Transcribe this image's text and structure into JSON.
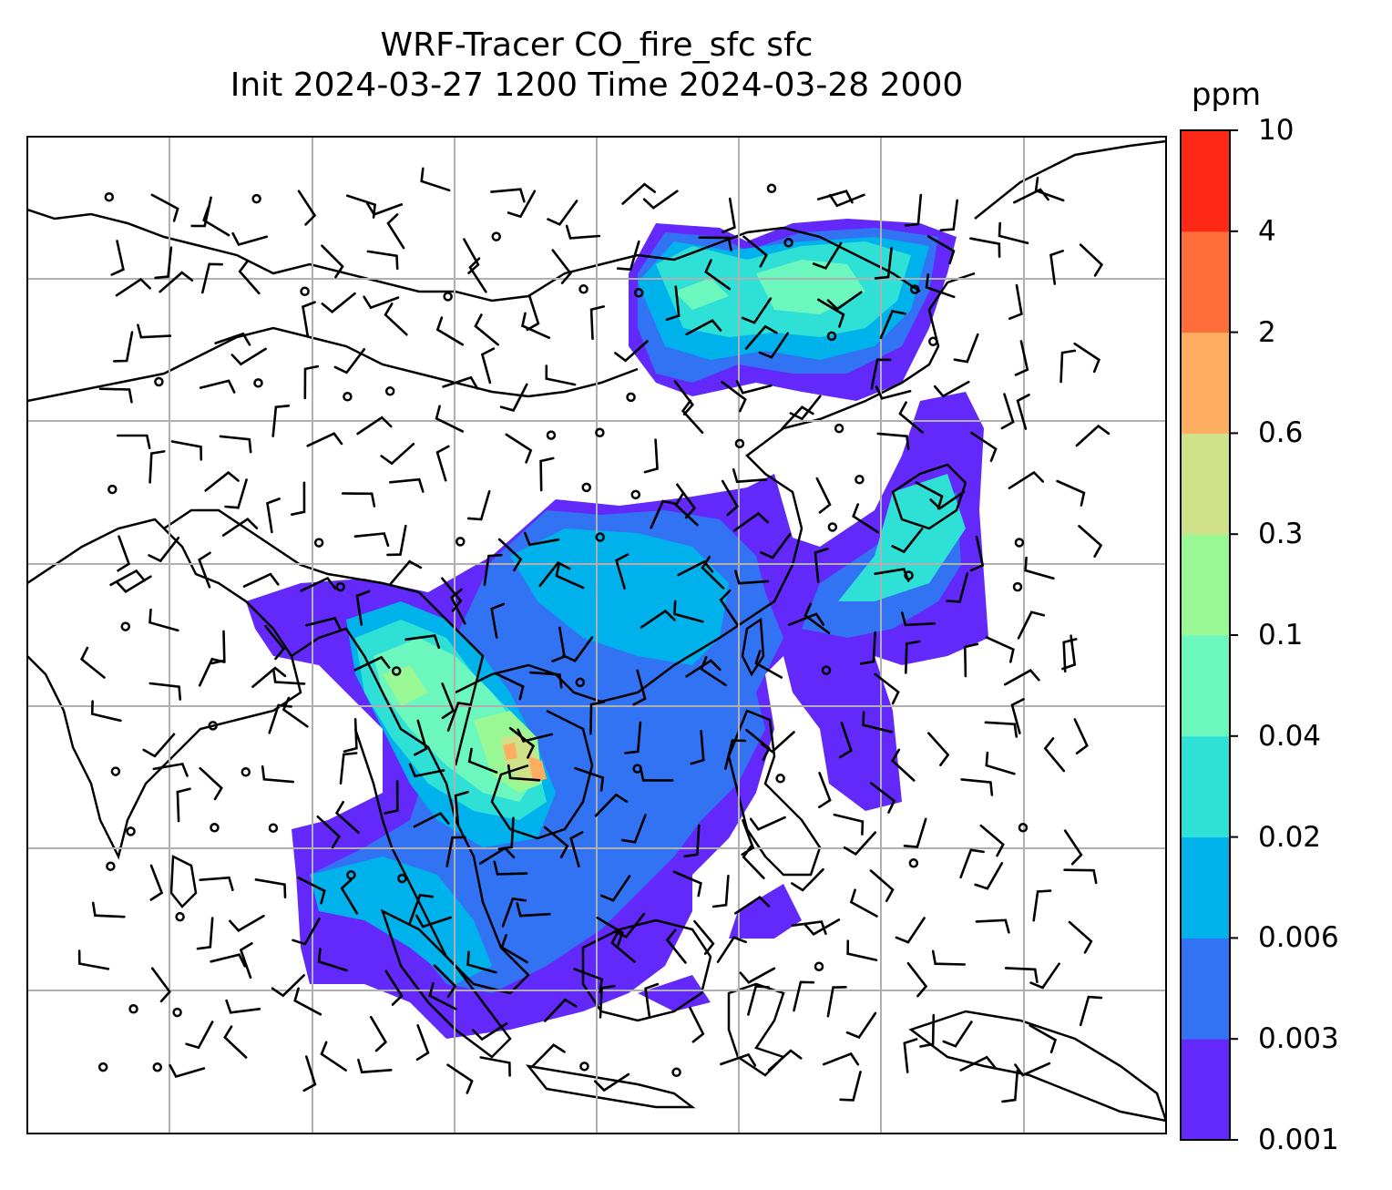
{
  "figure": {
    "title_line1": "WRF-Tracer CO_fire_sfc sfc",
    "title_line2": "Init 2024-03-27 1200 Time 2024-03-28 2000"
  },
  "colorbar": {
    "units": "ppm",
    "levels": [
      "0.001",
      "0.003",
      "0.006",
      "0.02",
      "0.04",
      "0.1",
      "0.3",
      "0.6",
      "2",
      "4",
      "10"
    ],
    "colors": [
      "#6328FA",
      "#3273F4",
      "#00B2EB",
      "#2FE0D6",
      "#6CF7BE",
      "#99F794",
      "#CFE189",
      "#FEAE60",
      "#FF6E3A",
      "#FF2817"
    ]
  }
}
